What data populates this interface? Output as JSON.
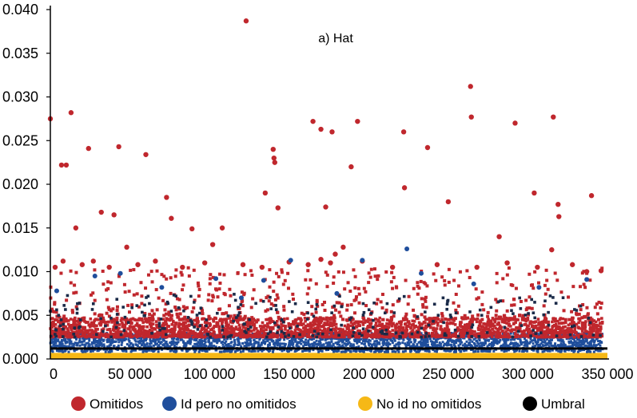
{
  "chart_data": {
    "type": "scatter",
    "title": "a) Hat",
    "xlabel": "",
    "ylabel": "",
    "xlim": [
      0,
      350000
    ],
    "ylim": [
      0,
      0.04
    ],
    "x_ticks": [
      0,
      50000,
      100000,
      150000,
      200000,
      250000,
      300000,
      350000
    ],
    "x_tick_labels": [
      "0",
      "50 000",
      "100 000",
      "150 000",
      "200 000",
      "250 000",
      "300 000",
      "350 000"
    ],
    "y_ticks": [
      0,
      0.005,
      0.01,
      0.015,
      0.02,
      0.025,
      0.03,
      0.035,
      0.04
    ],
    "y_tick_labels": [
      "0.000",
      "0.005",
      "0.010",
      "0.015",
      "0.020",
      "0.025",
      "0.030",
      "0.035",
      "0.040"
    ],
    "grid": false,
    "legend_position": "bottom",
    "colors": {
      "omitidos": "#c0272d",
      "id_pero_no_omitidos": "#1f4e9c",
      "no_id_no_omitidos": "#f6b816",
      "umbral": "#000000",
      "axis": "#000000"
    },
    "series": [
      {
        "name": "Omitidos",
        "key": "omitidos",
        "marker": "dot",
        "points": [
          [
            0,
            0.0275
          ],
          [
            7000,
            0.0222
          ],
          [
            10000,
            0.0222
          ],
          [
            13000,
            0.0282
          ],
          [
            16000,
            0.015
          ],
          [
            24000,
            0.0241
          ],
          [
            32000,
            0.0168
          ],
          [
            40000,
            0.0165
          ],
          [
            43000,
            0.0243
          ],
          [
            48000,
            0.0128
          ],
          [
            60000,
            0.0234
          ],
          [
            73000,
            0.0185
          ],
          [
            76000,
            0.0161
          ],
          [
            89000,
            0.0149
          ],
          [
            102000,
            0.0131
          ],
          [
            108000,
            0.015
          ],
          [
            123000,
            0.0387
          ],
          [
            135000,
            0.019
          ],
          [
            140000,
            0.024
          ],
          [
            140500,
            0.023
          ],
          [
            141000,
            0.0225
          ],
          [
            143000,
            0.0173
          ],
          [
            165000,
            0.0272
          ],
          [
            170000,
            0.0263
          ],
          [
            173000,
            0.0174
          ],
          [
            177000,
            0.026
          ],
          [
            189000,
            0.022
          ],
          [
            193000,
            0.0272
          ],
          [
            222000,
            0.026
          ],
          [
            222500,
            0.0196
          ],
          [
            237000,
            0.0242
          ],
          [
            250000,
            0.018
          ],
          [
            264000,
            0.0312
          ],
          [
            264500,
            0.0277
          ],
          [
            282000,
            0.014
          ],
          [
            292000,
            0.027
          ],
          [
            304000,
            0.019
          ],
          [
            316000,
            0.0277
          ],
          [
            315000,
            0.0125
          ],
          [
            319000,
            0.0177
          ],
          [
            319500,
            0.0163
          ],
          [
            340000,
            0.0187
          ],
          [
            3000,
            0.0105
          ],
          [
            8000,
            0.0112
          ],
          [
            20000,
            0.0108
          ],
          [
            27000,
            0.0112
          ],
          [
            37000,
            0.0105
          ],
          [
            55000,
            0.0108
          ],
          [
            66000,
            0.0112
          ],
          [
            83000,
            0.0105
          ],
          [
            97000,
            0.011
          ],
          [
            121000,
            0.0108
          ],
          [
            133000,
            0.0105
          ],
          [
            150000,
            0.0111
          ],
          [
            162000,
            0.0108
          ],
          [
            170000,
            0.0114
          ],
          [
            176000,
            0.011
          ],
          [
            196000,
            0.0112
          ],
          [
            215000,
            0.0105
          ],
          [
            243000,
            0.0108
          ],
          [
            268000,
            0.0105
          ],
          [
            287000,
            0.011
          ],
          [
            306000,
            0.0105
          ],
          [
            328000,
            0.0108
          ],
          [
            346000,
            0.0101
          ],
          [
            337000,
            0.01
          ],
          [
            179000,
            0.012
          ],
          [
            184000,
            0.0128
          ]
        ]
      },
      {
        "name": "Id pero no omitidos",
        "key": "id_pero_no_omitidos",
        "marker": "dot",
        "points": [
          [
            4000,
            0.0078
          ],
          [
            28000,
            0.0095
          ],
          [
            44000,
            0.0098
          ],
          [
            70000,
            0.0082
          ],
          [
            104000,
            0.0092
          ],
          [
            134000,
            0.009
          ],
          [
            151000,
            0.0113
          ],
          [
            196000,
            0.0113
          ],
          [
            224000,
            0.0126
          ],
          [
            233000,
            0.0098
          ],
          [
            266000,
            0.0086
          ],
          [
            307000,
            0.0082
          ],
          [
            337000,
            0.0091
          ],
          [
            180000,
            0.0075
          ],
          [
            120000,
            0.007
          ]
        ]
      },
      {
        "name": "No id no omitidos",
        "key": "no_id_no_omitidos",
        "marker": "band",
        "ymax": 0.0007
      },
      {
        "name": "Umbral",
        "key": "umbral",
        "marker": "line",
        "y": 0.0012
      }
    ]
  }
}
